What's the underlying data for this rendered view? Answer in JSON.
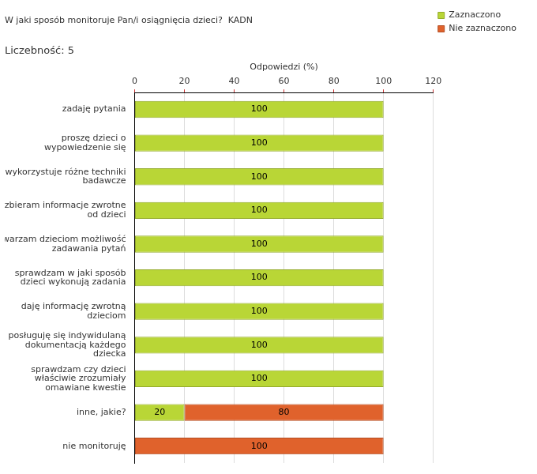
{
  "chart_data": {
    "type": "bar",
    "orientation": "horizontal",
    "stacked": true,
    "title": "W jaki sposób monitoruje Pan/i osiągnięcia dzieci?  KADN",
    "subtitle": "Liczebność: 5",
    "x_label": "Odpowiedzi (%)",
    "categories": [
      "zadaję pytania",
      "proszę dzieci o wypowiedzenie się",
      "wykorzystuje różne techniki badawcze",
      "zbieram informacje zwrotne od dzieci",
      "stwarzam dzieciom możliwość zadawania pytań",
      "sprawdzam w jaki sposób dzieci wykonują zadania",
      "daję informację zwrotną dzieciom",
      "posługuję się indywidulaną dokumentacją każdego dziecka",
      "sprawdzam czy dzieci właściwie zrozumiały omawiane kwestie",
      "inne, jakie?",
      "nie monitoruję"
    ],
    "series": [
      {
        "name": "Zaznaczono",
        "color": "#b9d636",
        "values": [
          100,
          100,
          100,
          100,
          100,
          100,
          100,
          100,
          100,
          20,
          null
        ]
      },
      {
        "name": "Nie zaznaczono",
        "color": "#e0622c",
        "values": [
          null,
          null,
          null,
          null,
          null,
          null,
          null,
          null,
          null,
          80,
          100
        ]
      }
    ],
    "xlim": [
      0,
      120
    ],
    "xticks": [
      0,
      20,
      40,
      60,
      80,
      100,
      120
    ],
    "grid": true,
    "legend": "top-right",
    "data_labels": true
  }
}
